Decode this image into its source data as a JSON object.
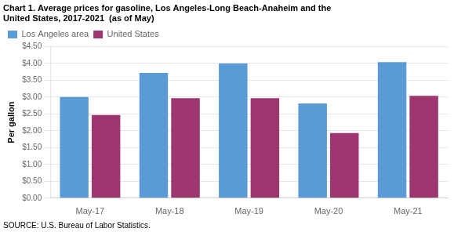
{
  "chart_data": {
    "type": "bar",
    "title": [
      "Chart 1. Average prices for gasoline, Los Angeles-Long Beach-Anaheim and the",
      "United States, 2017-2021  (as of May)"
    ],
    "ylabel": "Per gallon",
    "annotations": [
      "SOURCE: U.S. Bureau of Labor Statistics."
    ],
    "categories": [
      "May-17",
      "May-18",
      "May-19",
      "May-20",
      "May-21"
    ],
    "series": [
      {
        "name": "Los Angeles area",
        "color": "#5B9BD5",
        "values": [
          3.0,
          3.72,
          4.0,
          2.81,
          4.04
        ]
      },
      {
        "name": "United States",
        "color": "#9E3670",
        "values": [
          2.47,
          2.97,
          2.97,
          1.93,
          3.04
        ]
      }
    ],
    "ylim": [
      0,
      4.5
    ],
    "yticks": [
      {
        "value": 0.0,
        "label": "$0.00"
      },
      {
        "value": 0.5,
        "label": "$0.50"
      },
      {
        "value": 1.0,
        "label": "$1.00"
      },
      {
        "value": 1.5,
        "label": "$1.50"
      },
      {
        "value": 2.0,
        "label": "$2.00"
      },
      {
        "value": 2.5,
        "label": "$2.50"
      },
      {
        "value": 3.0,
        "label": "$3.00"
      },
      {
        "value": 3.5,
        "label": "$3.50"
      },
      {
        "value": 4.0,
        "label": "$4.00"
      },
      {
        "value": 4.5,
        "label": "$4.50"
      }
    ],
    "grid": true,
    "legend": "upper left"
  }
}
